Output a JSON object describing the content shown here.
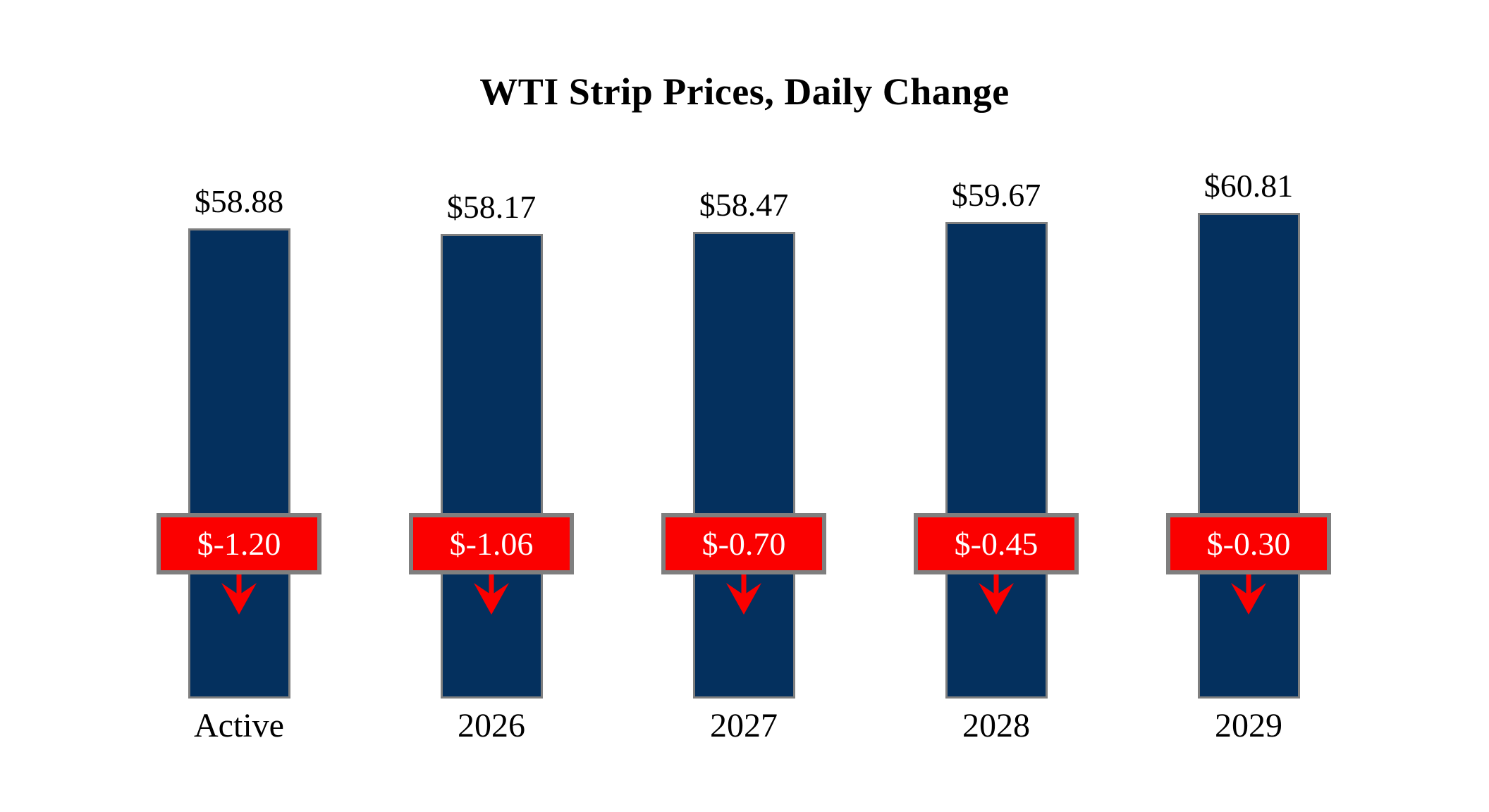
{
  "chart_data": {
    "type": "bar",
    "title": "WTI Strip Prices, Daily Change",
    "categories": [
      "Active",
      "2026",
      "2027",
      "2028",
      "2029"
    ],
    "series": [
      {
        "name": "WTI Strip Price",
        "values": [
          58.88,
          58.17,
          58.47,
          59.67,
          60.81
        ],
        "labels": [
          "$58.88",
          "$58.17",
          "$58.47",
          "$59.67",
          "$60.81"
        ]
      },
      {
        "name": "Daily Change",
        "values": [
          -1.2,
          -1.06,
          -0.7,
          -0.45,
          -0.3
        ],
        "labels": [
          "$-1.20",
          "$-1.06",
          "$-0.70",
          "$-0.45",
          "$-0.30"
        ]
      }
    ],
    "ylim": [
      0,
      65
    ],
    "grid": false,
    "legend": "none",
    "change_direction": "down",
    "colors": {
      "background": "#FFFFFF",
      "bar_fill": "#04305E",
      "bar_border": "#7F7F7F",
      "badge_fill": "#FB0000",
      "badge_border": "#7F7F7F",
      "badge_text": "#FFFFFF",
      "arrow": "#FB0000",
      "title_text": "#000000",
      "value_text": "#000000",
      "category_text": "#000000"
    }
  }
}
